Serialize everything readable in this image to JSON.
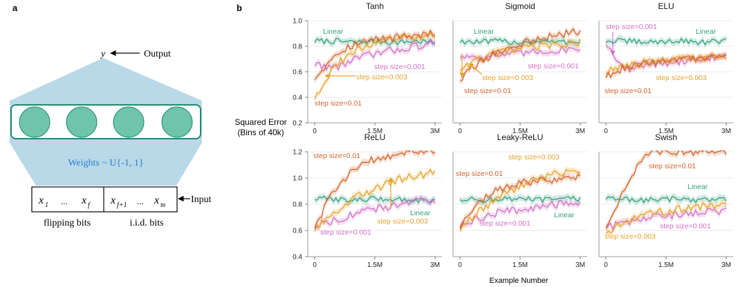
{
  "panel_a": {
    "label": "a",
    "output_var": "y",
    "output_label": "Output",
    "weights_label": "Weights ~ U{-1, 1}",
    "input_label": "Input",
    "input_left": {
      "x1": "x",
      "x1_sub": "1",
      "dots": "...",
      "xf": "x",
      "xf_sub": "f"
    },
    "input_right": {
      "x1": "x",
      "x1_sub": "f+1",
      "dots": "...",
      "xm": "x",
      "xm_sub": "m"
    },
    "flipping_label": "flipping bits",
    "iid_label": "i.i.d. bits",
    "colors": {
      "cone": "#b9d8e8",
      "unit": "#6fc4ac",
      "box": "#1e8a6a"
    }
  },
  "panel_b": {
    "label": "b",
    "ylabel_line1": "Squared Error",
    "ylabel_line2": "(Bins of 40k)",
    "xlabel": "Example Number",
    "colors": {
      "linear": "#2f9e7e",
      "small": "#d26fc6",
      "mid": "#e6a22a",
      "large": "#d1632a"
    }
  },
  "chart_data": [
    {
      "type": "line",
      "title": "Tanh",
      "x": [
        0,
        0.5,
        1,
        1.5,
        2,
        2.5,
        3
      ],
      "xlabel": "Example Number (M)",
      "ylabel": "Squared Error (Bins of 40k)",
      "ylim": [
        0.2,
        1.0
      ],
      "yticks": [
        0.2,
        0.4,
        0.6,
        0.8,
        1.0
      ],
      "xticks": [
        "0",
        "1.5M",
        "3M"
      ],
      "series": [
        {
          "name": "Linear",
          "values": [
            0.84,
            0.84,
            0.83,
            0.84,
            0.83,
            0.84,
            0.83
          ]
        },
        {
          "name": "step size=0.001",
          "values": [
            0.66,
            0.63,
            0.7,
            0.74,
            0.77,
            0.8,
            0.82
          ]
        },
        {
          "name": "step size=0.003",
          "values": [
            0.4,
            0.65,
            0.76,
            0.83,
            0.86,
            0.87,
            0.88
          ]
        },
        {
          "name": "step size=0.01",
          "values": [
            0.55,
            0.74,
            0.82,
            0.85,
            0.87,
            0.89,
            0.9
          ]
        }
      ],
      "annotations": [
        "Linear",
        "step size=0.001",
        "step size=0.003",
        "step size=0.01"
      ]
    },
    {
      "type": "line",
      "title": "Sigmoid",
      "x": [
        0,
        0.5,
        1,
        1.5,
        2,
        2.5,
        3
      ],
      "xticks": [
        "0",
        "1.5M",
        "3M"
      ],
      "series": [
        {
          "name": "Linear",
          "values": [
            0.84,
            0.83,
            0.84,
            0.83,
            0.84,
            0.83,
            0.84
          ]
        },
        {
          "name": "step size=0.001",
          "values": [
            0.72,
            0.72,
            0.73,
            0.74,
            0.76,
            0.77,
            0.79
          ]
        },
        {
          "name": "step size=0.003",
          "values": [
            0.62,
            0.7,
            0.75,
            0.78,
            0.8,
            0.81,
            0.83
          ]
        },
        {
          "name": "step size=0.01",
          "values": [
            0.54,
            0.68,
            0.76,
            0.82,
            0.86,
            0.89,
            0.92
          ]
        }
      ],
      "annotations": [
        "Linear",
        "step size=0.001",
        "step size=0.003",
        "step size=0.01"
      ]
    },
    {
      "type": "line",
      "title": "ELU",
      "x": [
        0,
        0.5,
        1,
        1.5,
        2,
        2.5,
        3
      ],
      "xticks": [
        "0",
        "1.5M",
        "3M"
      ],
      "series": [
        {
          "name": "Linear",
          "values": [
            0.84,
            0.84,
            0.83,
            0.84,
            0.84,
            0.83,
            0.84
          ]
        },
        {
          "name": "step size=0.001",
          "values": [
            0.82,
            0.62,
            0.65,
            0.67,
            0.69,
            0.7,
            0.72
          ]
        },
        {
          "name": "step size=0.003",
          "values": [
            0.6,
            0.65,
            0.67,
            0.69,
            0.7,
            0.71,
            0.71
          ]
        },
        {
          "name": "step size=0.01",
          "values": [
            0.56,
            0.64,
            0.67,
            0.7,
            0.7,
            0.71,
            0.71
          ]
        }
      ],
      "annotations": [
        "step size=0.001",
        "Linear",
        "step size=0.003",
        "step size=0.01"
      ]
    },
    {
      "type": "line",
      "title": "ReLU",
      "x": [
        0,
        0.5,
        1,
        1.5,
        2,
        2.5,
        3
      ],
      "ylim": [
        0.4,
        1.2
      ],
      "yticks": [
        0.4,
        0.6,
        0.8,
        1.0,
        1.2
      ],
      "xticks": [
        "0",
        "1.5M",
        "3M"
      ],
      "series": [
        {
          "name": "Linear",
          "values": [
            0.84,
            0.84,
            0.83,
            0.84,
            0.84,
            0.83,
            0.84
          ]
        },
        {
          "name": "step size=0.001",
          "values": [
            0.64,
            0.68,
            0.73,
            0.76,
            0.79,
            0.82,
            0.84
          ]
        },
        {
          "name": "step size=0.003",
          "values": [
            0.6,
            0.74,
            0.85,
            0.92,
            0.98,
            1.02,
            1.04
          ]
        },
        {
          "name": "step size=0.01",
          "values": [
            0.62,
            0.92,
            1.08,
            1.15,
            1.18,
            1.2,
            1.2
          ]
        }
      ],
      "annotations": [
        "step size=0.01",
        "Linear",
        "step size=0.003",
        "step size=0.001"
      ]
    },
    {
      "type": "line",
      "title": "Leaky-ReLU",
      "x": [
        0,
        0.5,
        1,
        1.5,
        2,
        2.5,
        3
      ],
      "xticks": [
        "0",
        "1.5M",
        "3M"
      ],
      "series": [
        {
          "name": "Linear",
          "values": [
            0.84,
            0.83,
            0.84,
            0.84,
            0.83,
            0.84,
            0.84
          ]
        },
        {
          "name": "step size=0.001",
          "values": [
            0.63,
            0.7,
            0.74,
            0.76,
            0.78,
            0.8,
            0.82
          ]
        },
        {
          "name": "step size=0.003",
          "values": [
            0.6,
            0.75,
            0.86,
            0.94,
            1.0,
            1.04,
            1.07
          ]
        },
        {
          "name": "step size=0.01",
          "values": [
            0.62,
            0.82,
            0.92,
            0.96,
            0.98,
            0.99,
            1.0
          ]
        }
      ],
      "annotations": [
        "step size=0.003",
        "step size=0.01",
        "Linear",
        "step size=0.001"
      ]
    },
    {
      "type": "line",
      "title": "Swish",
      "x": [
        0,
        0.5,
        1,
        1.5,
        2,
        2.5,
        3
      ],
      "xticks": [
        "0",
        "1.5M",
        "3M"
      ],
      "series": [
        {
          "name": "Linear",
          "values": [
            0.84,
            0.84,
            0.83,
            0.84,
            0.84,
            0.83,
            0.84
          ]
        },
        {
          "name": "step size=0.001",
          "values": [
            0.62,
            0.66,
            0.69,
            0.71,
            0.73,
            0.74,
            0.75
          ]
        },
        {
          "name": "step size=0.003",
          "values": [
            0.58,
            0.68,
            0.72,
            0.75,
            0.77,
            0.79,
            0.8
          ]
        },
        {
          "name": "step size=0.01",
          "values": [
            0.62,
            0.95,
            1.2,
            1.2,
            1.2,
            1.2,
            1.2
          ]
        }
      ],
      "annotations": [
        "step size=0.01",
        "Linear",
        "step size=0.001",
        "step size=0.003"
      ]
    }
  ]
}
